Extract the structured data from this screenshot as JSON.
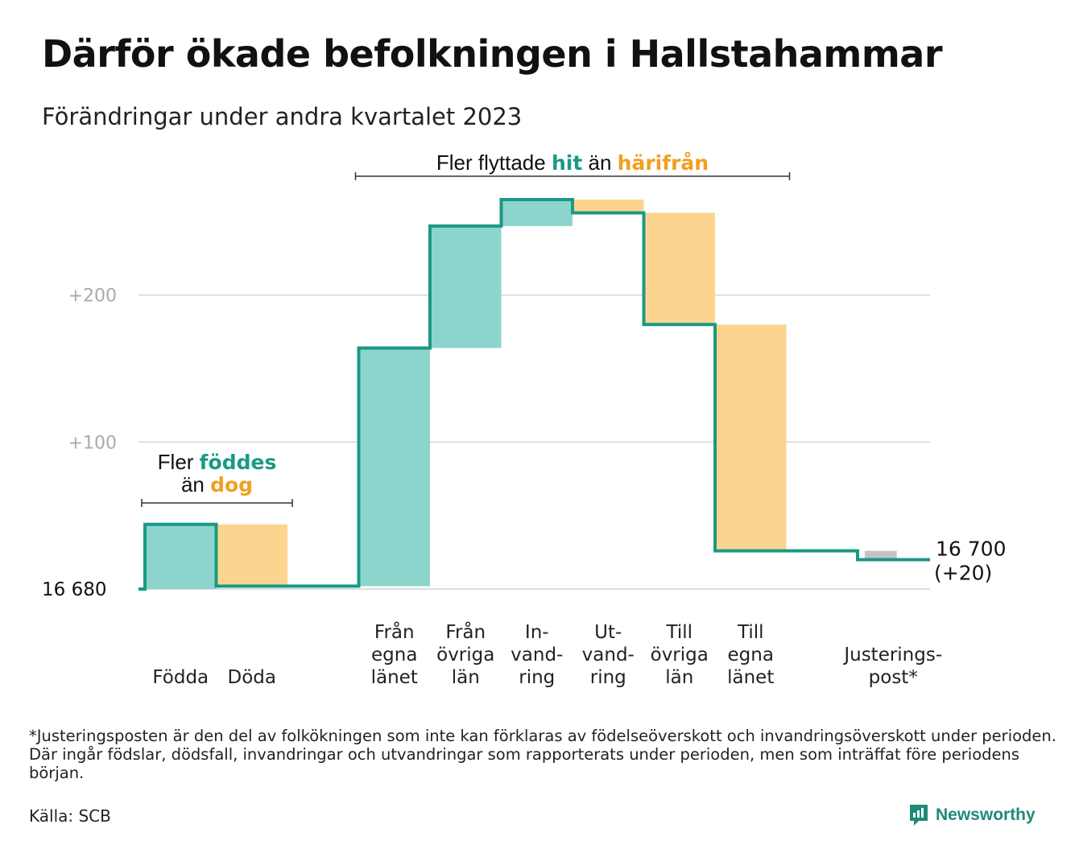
{
  "title": "Därför ökade befolkningen i Hallstahammar",
  "subtitle": "Förändringar under andra kvartalet 2023",
  "footnote": "*Justeringsposten är den del av folkökningen som inte kan förklaras av födelseöverskott och invandringsöverskott under perioden. Där ingår födslar, dödsfall, invandringar och utvandringar som rapporterats under perioden, men som inträffat före periodens början.",
  "source": "Källa: SCB",
  "brand": {
    "name": "Newsworthy",
    "icon": "newsworthy-logo-icon"
  },
  "colors": {
    "increase": "#8dd5cc",
    "decrease": "#fbd58f",
    "adjustment": "#c4c4c4",
    "line": "#1a9986",
    "increase_text": "#1a9986",
    "decrease_text": "#f0a020"
  },
  "chart_data": {
    "type": "waterfall",
    "start": {
      "value": 16680,
      "label": "16  680"
    },
    "end": {
      "value": 16700,
      "label": "16 700",
      "change_label": "(+20)"
    },
    "yticks": [
      {
        "value": 100,
        "label": "+100"
      },
      {
        "value": 200,
        "label": "+200"
      }
    ],
    "ylim": [
      0,
      265
    ],
    "grid": true,
    "steps": [
      {
        "label_lines": [
          "Födda"
        ],
        "change": 44,
        "kind": "increase"
      },
      {
        "label_lines": [
          "Döda"
        ],
        "change": -42,
        "kind": "decrease"
      },
      {
        "label_lines": [
          "Från",
          "egna",
          "länet"
        ],
        "change": 162,
        "kind": "increase",
        "gap_before": true
      },
      {
        "label_lines": [
          "Från",
          "övriga",
          "län"
        ],
        "change": 83,
        "kind": "increase"
      },
      {
        "label_lines": [
          "In-",
          "vand-",
          "ring"
        ],
        "change": 18,
        "kind": "increase"
      },
      {
        "label_lines": [
          "Ut-",
          "vand-",
          "ring"
        ],
        "change": -9,
        "kind": "decrease"
      },
      {
        "label_lines": [
          "Till",
          "övriga",
          "län"
        ],
        "change": -76,
        "kind": "decrease"
      },
      {
        "label_lines": [
          "Till",
          "egna",
          "länet"
        ],
        "change": -154,
        "kind": "decrease"
      },
      {
        "label_lines": [
          "Justerings-",
          "post*"
        ],
        "change": -6,
        "kind": "adjustment",
        "gap_before": true
      }
    ],
    "annotations": [
      {
        "id": "births",
        "line1_pre": "Fler ",
        "line1_hi": "föddes",
        "line1_hi_kind": "increase",
        "line2_pre": "än ",
        "line2_hi": "dog",
        "line2_hi_kind": "decrease",
        "span": [
          0,
          1
        ]
      },
      {
        "id": "migration",
        "line1_pre": "Fler flyttade ",
        "line1_hi": "hit",
        "line1_hi_kind": "increase",
        "line2_pre": "än ",
        "line2_hi": "härifrån",
        "line2_hi_kind": "decrease",
        "span": [
          2,
          7
        ]
      }
    ]
  }
}
